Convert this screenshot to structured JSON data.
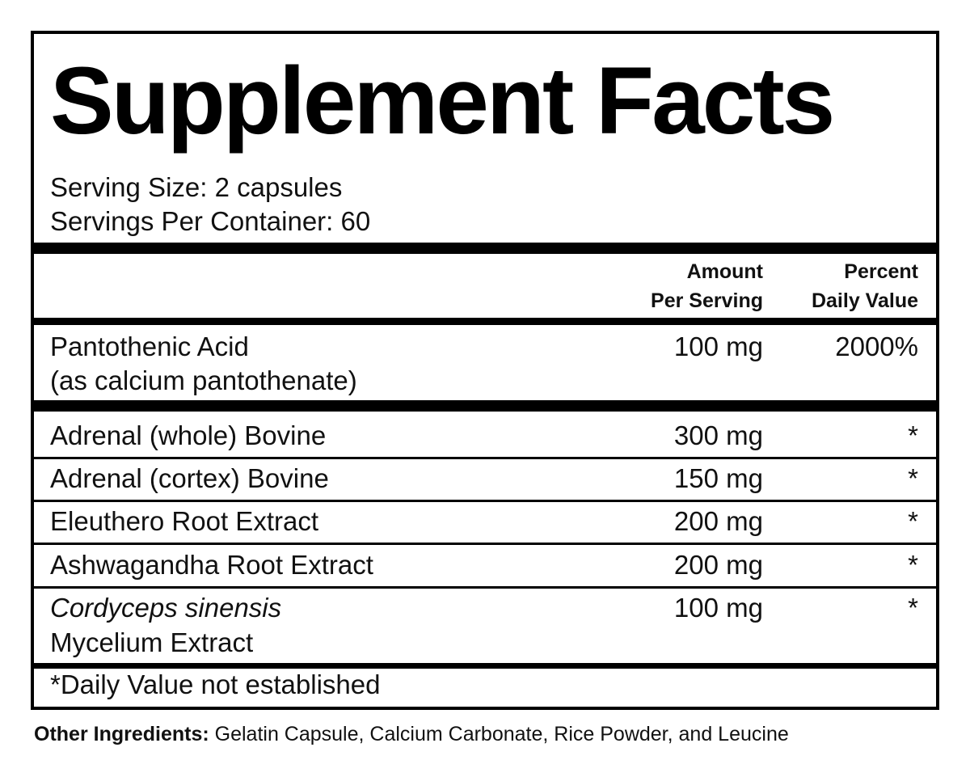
{
  "label": {
    "title": "Supplement Facts",
    "serving_size": "Serving Size: 2 capsules",
    "servings_per_container": "Servings Per Container: 60",
    "header": {
      "amount_line1": "Amount",
      "amount_line2": "Per Serving",
      "dv_line1": "Percent",
      "dv_line2": "Daily Value"
    },
    "rows": [
      {
        "name": "Pantothenic Acid",
        "name_line2": "(as calcium pantothenate)",
        "amount": "100 mg",
        "dv": "2000%"
      },
      {
        "name": "Adrenal (whole) Bovine",
        "amount": "300 mg",
        "dv": "*"
      },
      {
        "name": "Adrenal (cortex) Bovine",
        "amount": "150 mg",
        "dv": "*"
      },
      {
        "name": "Eleuthero Root Extract",
        "amount": "200 mg",
        "dv": "*"
      },
      {
        "name": "Ashwagandha Root Extract",
        "amount": "200 mg",
        "dv": "*"
      },
      {
        "name": "Cordyceps sinensis",
        "name_line2": "Mycelium Extract",
        "amount": "100 mg",
        "dv": "*"
      }
    ],
    "footnote": "*Daily Value not established"
  },
  "other_ingredients": {
    "label": "Other Ingredients:",
    "text": " Gelatin Capsule, Calcium Carbonate, Rice Powder, and Leucine"
  }
}
